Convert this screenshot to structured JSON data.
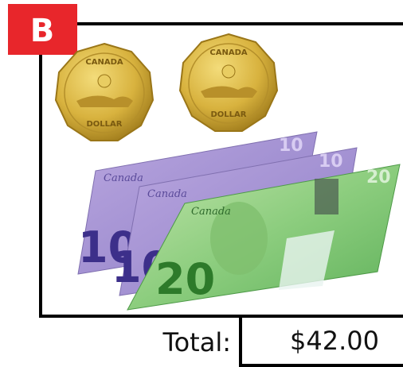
{
  "badge": "B",
  "coins": [
    {
      "country": "CANADA",
      "denomination": "DOLLAR"
    },
    {
      "country": "CANADA",
      "denomination": "DOLLAR"
    }
  ],
  "bills": [
    {
      "country": "Canada",
      "value": "10"
    },
    {
      "country": "Canada",
      "value": "10"
    },
    {
      "country": "Canada",
      "value": "20"
    }
  ],
  "total": {
    "label": "Total:",
    "amount": "$42.00"
  }
}
